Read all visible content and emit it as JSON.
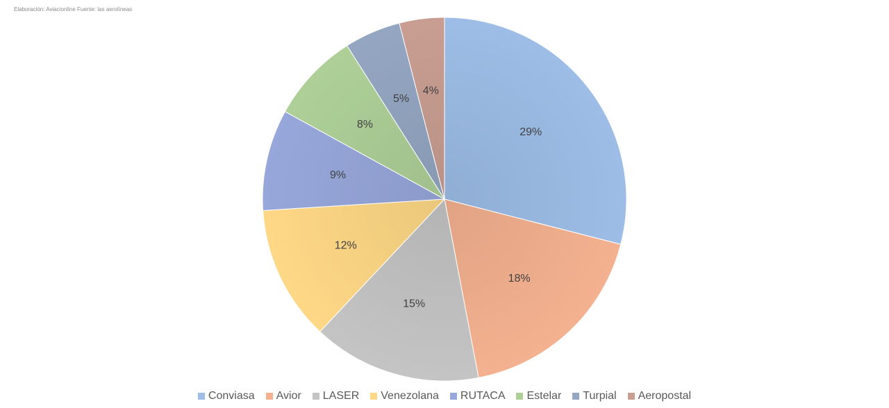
{
  "caption": "Elaboración: Aviacionline   Fuente: las aerolíneas",
  "chart_data": {
    "type": "pie",
    "legend_position": "bottom",
    "slices": [
      {
        "label": "Conviasa",
        "value": 29,
        "display": "29%",
        "color": "#9dbde6"
      },
      {
        "label": "Avior",
        "value": 18,
        "display": "18%",
        "color": "#f4b190"
      },
      {
        "label": "LASER",
        "value": 15,
        "display": "15%",
        "color": "#c4c4c4"
      },
      {
        "label": "Venezolana",
        "value": 12,
        "display": "12%",
        "color": "#fed886"
      },
      {
        "label": "RUTACA",
        "value": 9,
        "display": "9%",
        "color": "#97a7da"
      },
      {
        "label": "Estelar",
        "value": 8,
        "display": "8%",
        "color": "#aed098"
      },
      {
        "label": "Turpial",
        "value": 5,
        "display": "5%",
        "color": "#94a6c2"
      },
      {
        "label": "Aeropostal",
        "value": 4,
        "display": "4%",
        "color": "#c99e92"
      }
    ]
  }
}
